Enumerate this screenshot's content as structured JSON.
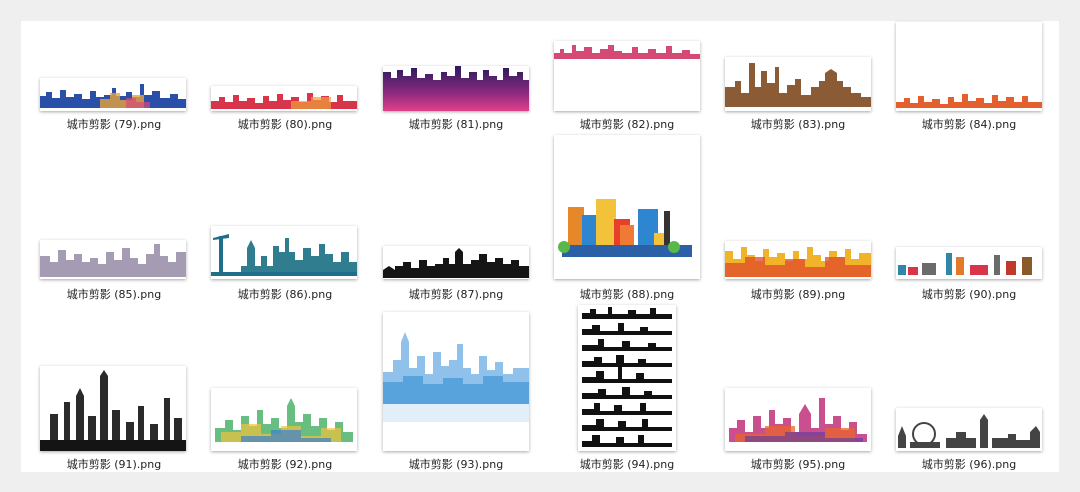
{
  "files": [
    {
      "name": "城市剪影 (79).png",
      "icon": "blue-skyline-thumbnail"
    },
    {
      "name": "城市剪影 (80).png",
      "icon": "red-skyline-thumbnail"
    },
    {
      "name": "城市剪影 (81).png",
      "icon": "purple-gradient-skyline-thumbnail"
    },
    {
      "name": "城市剪影 (82).png",
      "icon": "pink-landmarks-thumbnail"
    },
    {
      "name": "城市剪影 (83).png",
      "icon": "brown-temple-skyline-thumbnail"
    },
    {
      "name": "城市剪影 (84).png",
      "icon": "orange-skyline-thumbnail"
    },
    {
      "name": "城市剪影 (85).png",
      "icon": "gray-lavender-skyline-thumbnail"
    },
    {
      "name": "城市剪影 (86).png",
      "icon": "teal-landmarks-thumbnail"
    },
    {
      "name": "城市剪影 (87).png",
      "icon": "black-houses-skyline-thumbnail"
    },
    {
      "name": "城市剪影 (88).png",
      "icon": "colorful-flat-city-thumbnail"
    },
    {
      "name": "城市剪影 (89).png",
      "icon": "yellow-red-watercolor-skyline-thumbnail"
    },
    {
      "name": "城市剪影 (90).png",
      "icon": "london-landmarks-thumbnail"
    },
    {
      "name": "城市剪影 (91).png",
      "icon": "black-skyscrapers-thumbnail"
    },
    {
      "name": "城市剪影 (92).png",
      "icon": "watercolor-skyline-thumbnail"
    },
    {
      "name": "城市剪影 (93).png",
      "icon": "light-blue-skyline-thumbnail"
    },
    {
      "name": "城市剪影 (94).png",
      "icon": "stacked-silhouettes-thumbnail"
    },
    {
      "name": "城市剪影 (95).png",
      "icon": "magenta-watercolor-skyline-thumbnail"
    },
    {
      "name": "城市剪影 (96).png",
      "icon": "gray-world-landmarks-thumbnail"
    }
  ],
  "colors": {
    "background": "#efefef",
    "panel": "#ffffff",
    "label_text": "#222222"
  }
}
